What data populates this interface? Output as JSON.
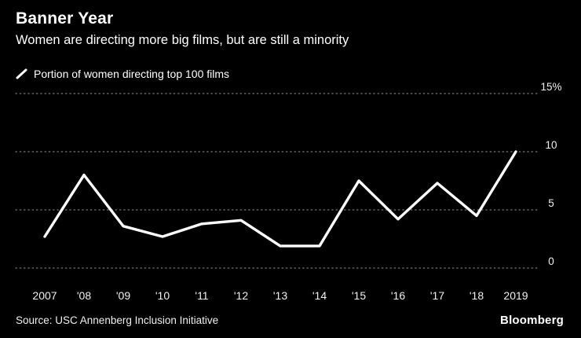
{
  "header": {
    "title": "Banner Year",
    "subtitle": "Women are directing more big films, but are still a minority"
  },
  "legend": {
    "label": "Portion of women directing top 100 films"
  },
  "chart_data": {
    "type": "line",
    "categories": [
      "2007",
      "'08",
      "'09",
      "'10",
      "'11",
      "'12",
      "'13",
      "'14",
      "'15",
      "'16",
      "'17",
      "'18",
      "2019"
    ],
    "values": [
      2.7,
      8.0,
      3.6,
      2.7,
      3.8,
      4.1,
      1.9,
      1.9,
      7.5,
      4.2,
      7.3,
      4.5,
      10.0
    ],
    "series_name": "Portion of women directing top 100 films",
    "title": "Banner Year",
    "xlabel": "",
    "ylabel": "",
    "ylim": [
      0,
      15
    ],
    "yticks": [
      0,
      5,
      10,
      15
    ],
    "ytick_labels": [
      "0",
      "5",
      "10",
      "15%"
    ],
    "grid": "dotted-horizontal",
    "legend_position": "top-left"
  },
  "footer": {
    "source": "Source: USC Annenberg Inclusion Initiative",
    "logo": "Bloomberg"
  },
  "colors": {
    "background": "#000000",
    "text": "#ffffff",
    "grid": "#7a7a7a",
    "line": "#ffffff",
    "tick_text": "#f0f0f0"
  }
}
